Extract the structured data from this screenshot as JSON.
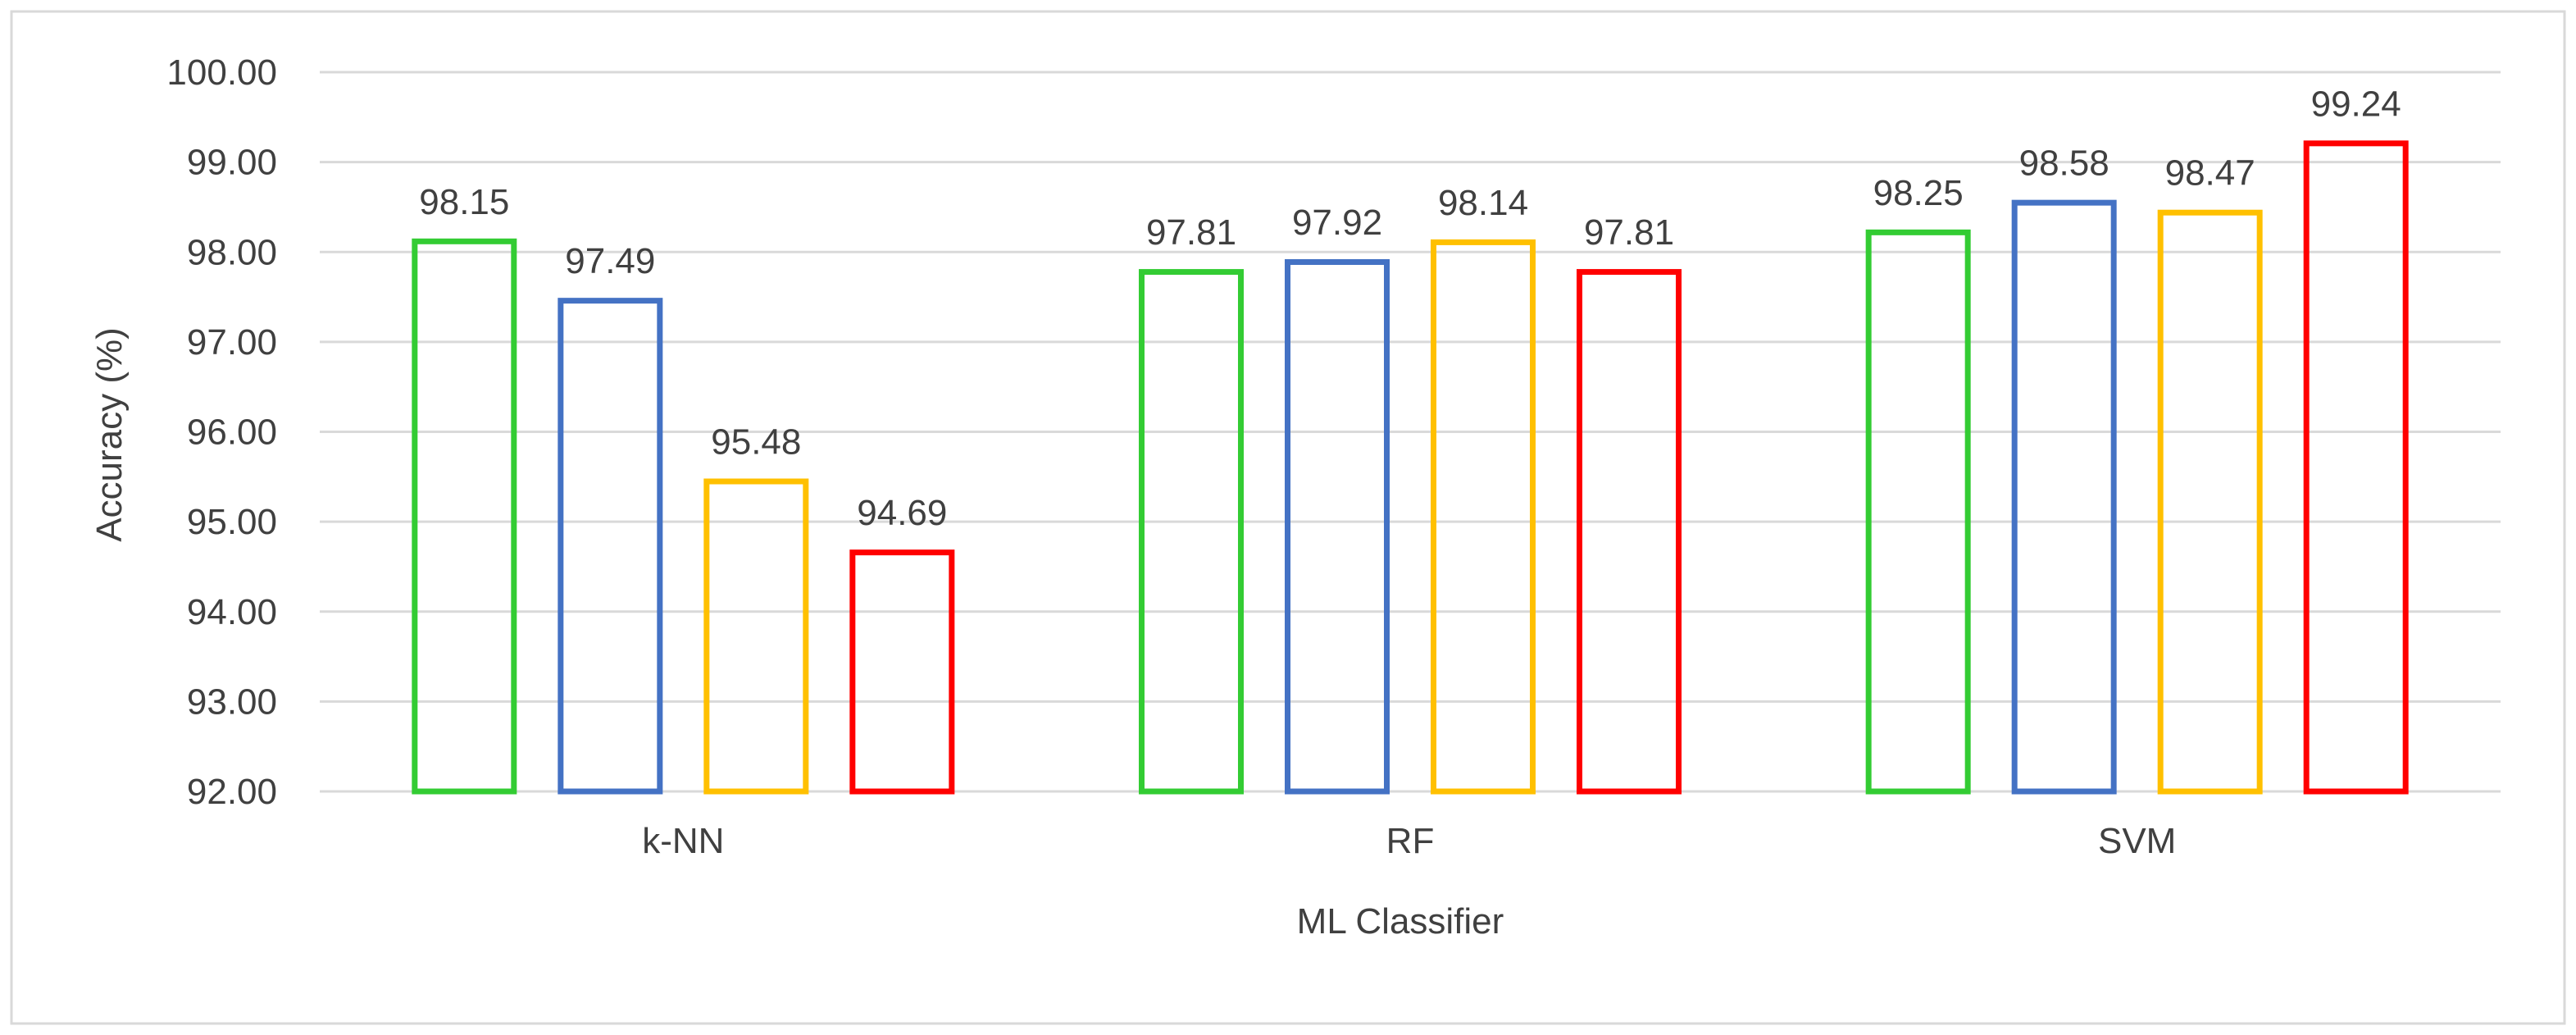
{
  "chart_data": {
    "type": "bar",
    "title": "",
    "xlabel": "ML Classifier",
    "ylabel": "Accuracy (%)",
    "ylim": [
      92,
      100
    ],
    "yticks": [
      "92.00",
      "93.00",
      "94.00",
      "95.00",
      "96.00",
      "97.00",
      "98.00",
      "99.00",
      "100.00"
    ],
    "categories": [
      "k-NN",
      "RF",
      "SVM"
    ],
    "grid": true,
    "legend": "none",
    "bar_style": "outline",
    "series": [
      {
        "color": "#33cc33",
        "values": [
          98.15,
          97.81,
          98.25
        ],
        "labels": [
          "98.15",
          "97.81",
          "98.25"
        ]
      },
      {
        "color": "#4472c4",
        "values": [
          97.49,
          97.92,
          98.58
        ],
        "labels": [
          "97.49",
          "97.92",
          "98.58"
        ]
      },
      {
        "color": "#ffc000",
        "values": [
          95.48,
          98.14,
          98.47
        ],
        "labels": [
          "95.48",
          "98.14",
          "98.47"
        ]
      },
      {
        "color": "#ff0000",
        "values": [
          94.69,
          97.81,
          99.24
        ],
        "labels": [
          "94.69",
          "97.81",
          "99.24"
        ]
      }
    ]
  }
}
